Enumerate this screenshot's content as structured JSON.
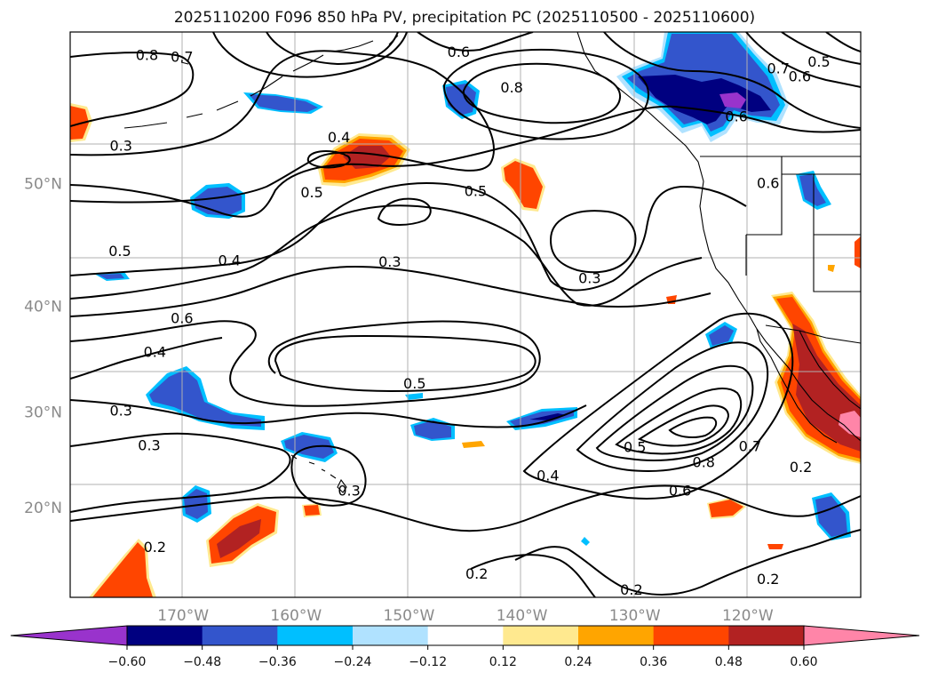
{
  "chart_data": {
    "type": "contour-map",
    "title": "2025110200 F096 850 hPa PV, precipitation PC (2025110500 - 2025110600)",
    "projection": "Mercator",
    "extent": {
      "lon": [
        -180,
        -110
      ],
      "lat": [
        10,
        60
      ]
    },
    "lon_ticks": [
      {
        "lon": -170,
        "label": "170°W"
      },
      {
        "lon": -160,
        "label": "160°W"
      },
      {
        "lon": -150,
        "label": "150°W"
      },
      {
        "lon": -140,
        "label": "140°W"
      },
      {
        "lon": -130,
        "label": "130°W"
      },
      {
        "lon": -120,
        "label": "120°W"
      }
    ],
    "lat_ticks": [
      {
        "lat": 20,
        "label": "20°N"
      },
      {
        "lat": 30,
        "label": "30°N"
      },
      {
        "lat": 40,
        "label": "40°N"
      },
      {
        "lat": 50,
        "label": "50°N"
      }
    ],
    "gridlines": true,
    "contour_labels": [
      {
        "text": "0.8",
        "lon": -173.2,
        "lat": 58.6
      },
      {
        "text": "0.7",
        "lon": -170.1,
        "lat": 58.5
      },
      {
        "text": "0.6",
        "lon": -145.6,
        "lat": 58.8
      },
      {
        "text": "0.8",
        "lon": -140.9,
        "lat": 56.6
      },
      {
        "text": "0.7",
        "lon": -117.3,
        "lat": 57.8
      },
      {
        "text": "0.6",
        "lon": -115.4,
        "lat": 57.3
      },
      {
        "text": "0.5",
        "lon": -113.7,
        "lat": 58.2
      },
      {
        "text": "0.3",
        "lon": -175.5,
        "lat": 52.7
      },
      {
        "text": "0.4",
        "lon": -156.2,
        "lat": 53.3
      },
      {
        "text": "0.5",
        "lon": -158.6,
        "lat": 49.3
      },
      {
        "text": "0.5",
        "lon": -144.1,
        "lat": 49.4
      },
      {
        "text": "0.6",
        "lon": -121.0,
        "lat": 54.7
      },
      {
        "text": "0.6",
        "lon": -118.2,
        "lat": 50.0
      },
      {
        "text": "0.5",
        "lon": -175.6,
        "lat": 44.7
      },
      {
        "text": "0.4",
        "lon": -165.9,
        "lat": 43.9
      },
      {
        "text": "0.3",
        "lon": -151.7,
        "lat": 43.8
      },
      {
        "text": "0.3",
        "lon": -134.0,
        "lat": 42.4
      },
      {
        "text": "0.6",
        "lon": -170.1,
        "lat": 38.9
      },
      {
        "text": "0.4",
        "lon": -172.5,
        "lat": 35.8
      },
      {
        "text": "0.5",
        "lon": -149.5,
        "lat": 32.8
      },
      {
        "text": "0.3",
        "lon": -175.5,
        "lat": 30.1
      },
      {
        "text": "0.3",
        "lon": -173.0,
        "lat": 26.6
      },
      {
        "text": "0.3",
        "lon": -155.3,
        "lat": 21.8
      },
      {
        "text": "0.4",
        "lon": -137.7,
        "lat": 23.4
      },
      {
        "text": "0.5",
        "lon": -130.0,
        "lat": 26.4
      },
      {
        "text": "0.8",
        "lon": -123.9,
        "lat": 24.8
      },
      {
        "text": "0.7",
        "lon": -119.8,
        "lat": 26.5
      },
      {
        "text": "0.6",
        "lon": -126.0,
        "lat": 21.8
      },
      {
        "text": "0.2",
        "lon": -172.5,
        "lat": 15.6
      },
      {
        "text": "0.2",
        "lon": -144.0,
        "lat": 12.6
      },
      {
        "text": "0.2",
        "lon": -130.3,
        "lat": 10.8
      },
      {
        "text": "0.2",
        "lon": -118.2,
        "lat": 12.0
      },
      {
        "text": "0.2",
        "lon": -115.3,
        "lat": 24.3
      }
    ],
    "colorbar": {
      "levels": [
        -0.6,
        -0.48,
        -0.36,
        -0.24,
        -0.12,
        0.12,
        0.24,
        0.36,
        0.48,
        0.6
      ],
      "tick_labels": [
        "−0.60",
        "−0.48",
        "−0.36",
        "−0.24",
        "−0.12",
        "0.12",
        "0.24",
        "0.36",
        "0.48",
        "0.60"
      ],
      "colors": [
        "#9933cc",
        "#000080",
        "#3355cc",
        "#00bfff",
        "#b0e2ff",
        "#ffffff",
        "#ffe98f",
        "#ffa500",
        "#ff4500",
        "#b22222",
        "#ff85a8"
      ],
      "extend": "both"
    }
  }
}
